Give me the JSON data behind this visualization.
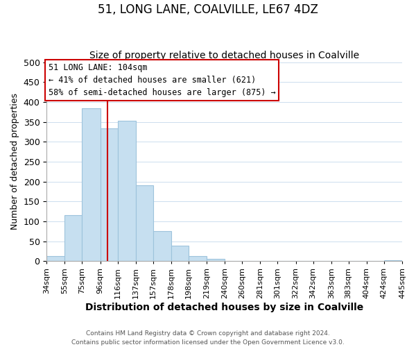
{
  "title": "51, LONG LANE, COALVILLE, LE67 4DZ",
  "subtitle": "Size of property relative to detached houses in Coalville",
  "xlabel": "Distribution of detached houses by size in Coalville",
  "ylabel": "Number of detached properties",
  "bar_left_edges": [
    34,
    55,
    75,
    96,
    116,
    137,
    157,
    178,
    198,
    219,
    240,
    260,
    281,
    301,
    322,
    342,
    363,
    383,
    404,
    424
  ],
  "bar_heights": [
    12,
    115,
    385,
    333,
    352,
    190,
    75,
    38,
    12,
    5,
    0,
    0,
    0,
    0,
    0,
    0,
    0,
    0,
    0,
    2
  ],
  "bar_widths": [
    21,
    20,
    21,
    20,
    21,
    20,
    21,
    20,
    21,
    21,
    20,
    21,
    20,
    21,
    20,
    21,
    20,
    21,
    20,
    21
  ],
  "tick_labels": [
    "34sqm",
    "55sqm",
    "75sqm",
    "96sqm",
    "116sqm",
    "137sqm",
    "157sqm",
    "178sqm",
    "198sqm",
    "219sqm",
    "240sqm",
    "260sqm",
    "281sqm",
    "301sqm",
    "322sqm",
    "342sqm",
    "363sqm",
    "383sqm",
    "404sqm",
    "424sqm",
    "445sqm"
  ],
  "bar_color": "#c6dff0",
  "bar_edge_color": "#9dc3dc",
  "vline_x": 104,
  "vline_color": "#cc0000",
  "annotation_line1": "51 LONG LANE: 104sqm",
  "annotation_line2": "← 41% of detached houses are smaller (621)",
  "annotation_line3": "58% of semi-detached houses are larger (875) →",
  "annotation_box_color": "#ffffff",
  "annotation_border_color": "#cc0000",
  "ylim": [
    0,
    500
  ],
  "yticks": [
    0,
    50,
    100,
    150,
    200,
    250,
    300,
    350,
    400,
    450,
    500
  ],
  "title_fontsize": 12,
  "subtitle_fontsize": 10,
  "xlabel_fontsize": 10,
  "ylabel_fontsize": 9,
  "tick_fontsize": 8,
  "footer_line1": "Contains HM Land Registry data © Crown copyright and database right 2024.",
  "footer_line2": "Contains public sector information licensed under the Open Government Licence v3.0.",
  "bg_color": "#ffffff",
  "grid_color": "#ccddee"
}
